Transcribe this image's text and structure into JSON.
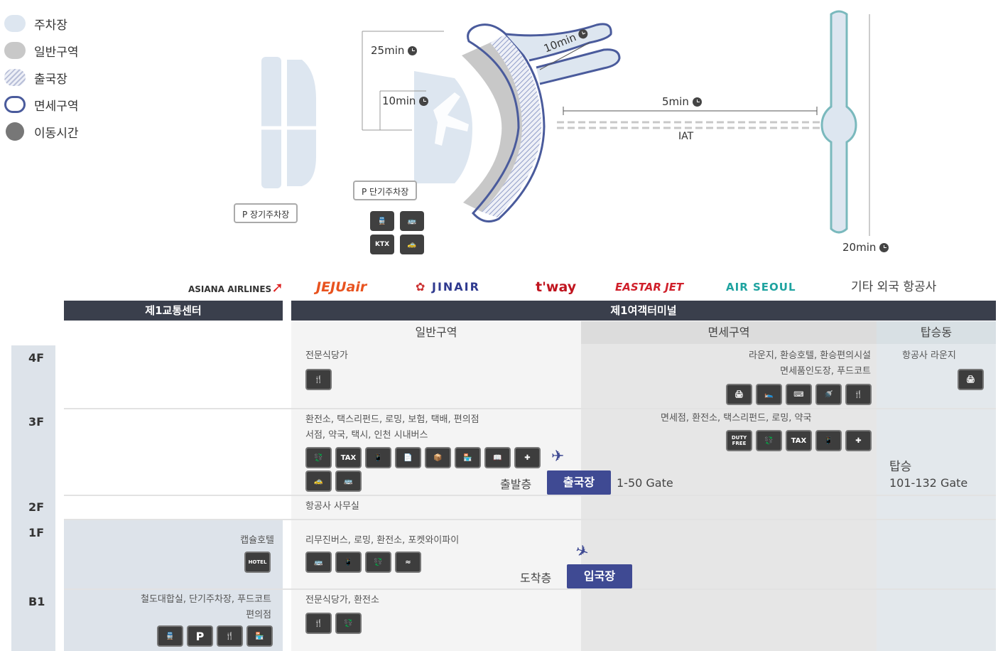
{
  "legend": {
    "items": [
      {
        "label": "주차장",
        "color": "#dde6f0"
      },
      {
        "label": "일반구역",
        "color": "#c8c8c8"
      },
      {
        "label": "출국장",
        "color": "hatched"
      },
      {
        "label": "면세구역",
        "color": "#4a5b9c"
      },
      {
        "label": "이동시간",
        "color": "#777777"
      }
    ]
  },
  "map": {
    "times": {
      "t25": "25min",
      "t10a": "10min",
      "t10b": "10min",
      "t5": "5min",
      "t20": "20min"
    },
    "iat_label": "IAT",
    "long_term_parking": "P 장기주차장",
    "short_term_parking": "P 단기주차장",
    "transport_icons": [
      "train-icon",
      "bus-icon",
      "ktx-icon",
      "taxi-icon"
    ],
    "ktx_label": "KTX"
  },
  "airlines": [
    {
      "name": "ASIANA AIRLINES",
      "color": "#333333"
    },
    {
      "name": "JEJUair",
      "color": "#e8531f"
    },
    {
      "name": "JINAIR",
      "color": "#2f3a8f"
    },
    {
      "name": "t'way",
      "color": "#c0151f"
    },
    {
      "name": "EASTAR JET",
      "color": "#d0202b"
    },
    {
      "name": "AIR SEOUL",
      "color": "#1fa3a0"
    },
    {
      "name": "기타 외국 항공사",
      "color": "#444444"
    }
  ],
  "table": {
    "header_left": "제1교통센터",
    "header_right": "제1여객터미널",
    "zones": [
      "일반구역",
      "면세구역",
      "탑승동"
    ],
    "floors": [
      "4F",
      "3F",
      "2F",
      "1F",
      "B1"
    ],
    "f4": {
      "general": "전문식당가",
      "dutyfree_line1": "라운지, 환승호텔, 환승편의시설",
      "dutyfree_line2": "면세품인도장, 푸드코트",
      "boarding": "항공사 라운지"
    },
    "f3": {
      "general_line1": "환전소, 택스리펀드, 로밍, 보험, 택배, 편의점",
      "general_line2": "서점, 약국, 택시, 인천 시내버스",
      "dutyfree": "면세점, 환전소, 택스리펀드, 로밍, 약국",
      "departure_floor": "출발층",
      "departure_badge": "출국장",
      "gate_range": "1-50 Gate",
      "boarding_label": "탑승",
      "boarding_gates": "101-132 Gate",
      "tax_label": "TAX",
      "duty_free_label": "DUTY FREE"
    },
    "f2": {
      "general": "항공사 사무실"
    },
    "f1": {
      "transport": "캡슐호텔",
      "hotel_label": "HOTEL",
      "general": "리무진버스, 로밍, 환전소, 포켓와이파이",
      "arrival_floor": "도착층",
      "arrival_badge": "입국장"
    },
    "b1": {
      "transport_line1": "철도대합실, 단기주차장, 푸드코트",
      "transport_line2": "편의점",
      "general": "전문식당가, 환전소",
      "parking_label": "P"
    }
  }
}
